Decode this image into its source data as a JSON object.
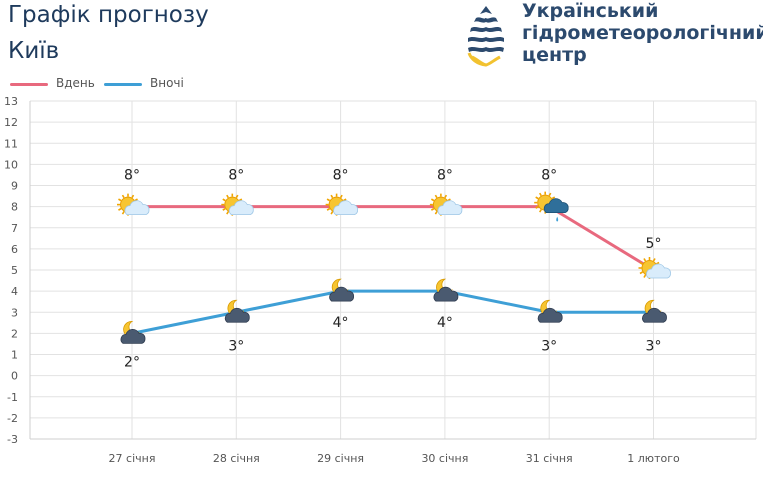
{
  "header": {
    "title": "Графік прогнозу",
    "city": "Київ"
  },
  "organization": {
    "name_line1": "Український",
    "name_line2": "гідрометеорологічний",
    "name_line3": "центр",
    "logo_icon": "water-drop-logo-icon"
  },
  "colors": {
    "day": "#e8697e",
    "night": "#3e9fd6",
    "grid": "#e2e2e2",
    "text": "#1e3a5c"
  },
  "legend": {
    "day_label": "Вдень",
    "night_label": "Вночі"
  },
  "chart_data": {
    "type": "line",
    "categories": [
      "27 січня",
      "28 січня",
      "29 січня",
      "30 січня",
      "31 січня",
      "1 лютого"
    ],
    "ylim": [
      -3,
      13
    ],
    "yticks": [
      13,
      12,
      11,
      10,
      9,
      8,
      7,
      6,
      5,
      4,
      3,
      2,
      1,
      0,
      -1,
      -2,
      -3
    ],
    "grid": true,
    "legend_position": "top-left",
    "series": [
      {
        "name": "Вдень",
        "values": [
          8,
          8,
          8,
          8,
          8,
          5
        ],
        "labels": [
          "8°",
          "8°",
          "8°",
          "8°",
          "8°",
          "5°"
        ],
        "icons": [
          "sun-cloud-icon",
          "sun-cloud-icon",
          "sun-cloud-icon",
          "sun-cloud-icon",
          "sun-rain-cloud-icon",
          "sun-cloud-icon"
        ]
      },
      {
        "name": "Вночі",
        "values": [
          2,
          3,
          4,
          4,
          3,
          3
        ],
        "labels": [
          "2°",
          "3°",
          "4°",
          "4°",
          "3°",
          "3°"
        ],
        "icons": [
          "moon-cloud-icon",
          "moon-cloud-icon",
          "moon-cloud-icon",
          "moon-cloud-icon",
          "moon-cloud-icon",
          "moon-cloud-icon"
        ]
      }
    ]
  }
}
